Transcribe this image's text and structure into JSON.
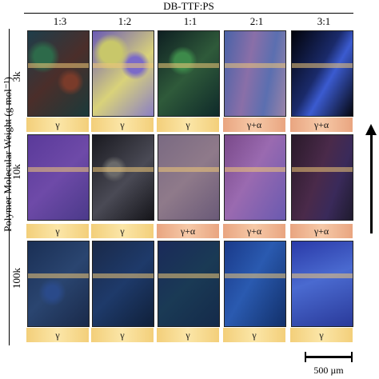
{
  "figure": {
    "top_title": "DB-TTF:PS",
    "columns": [
      "1:3",
      "1:2",
      "1:1",
      "2:1",
      "3:1"
    ],
    "y_axis_title": "Polymer Molecular Weight (g mol⁻¹)",
    "rows": [
      {
        "label": "3k",
        "phases": [
          "γ",
          "γ",
          "γ",
          "γ+α",
          "γ+α"
        ]
      },
      {
        "label": "10k",
        "phases": [
          "γ",
          "γ",
          "γ+α",
          "γ+α",
          "γ+α"
        ]
      },
      {
        "label": "100k",
        "phases": [
          "γ",
          "γ",
          "γ",
          "γ",
          "γ"
        ]
      }
    ],
    "scale_bar_label": "500 µm",
    "colors": {
      "gamma_band": "#f3cf7a",
      "gamma_alpha_band": "#e9a580"
    },
    "icons": [
      "up-arrow-icon"
    ]
  }
}
